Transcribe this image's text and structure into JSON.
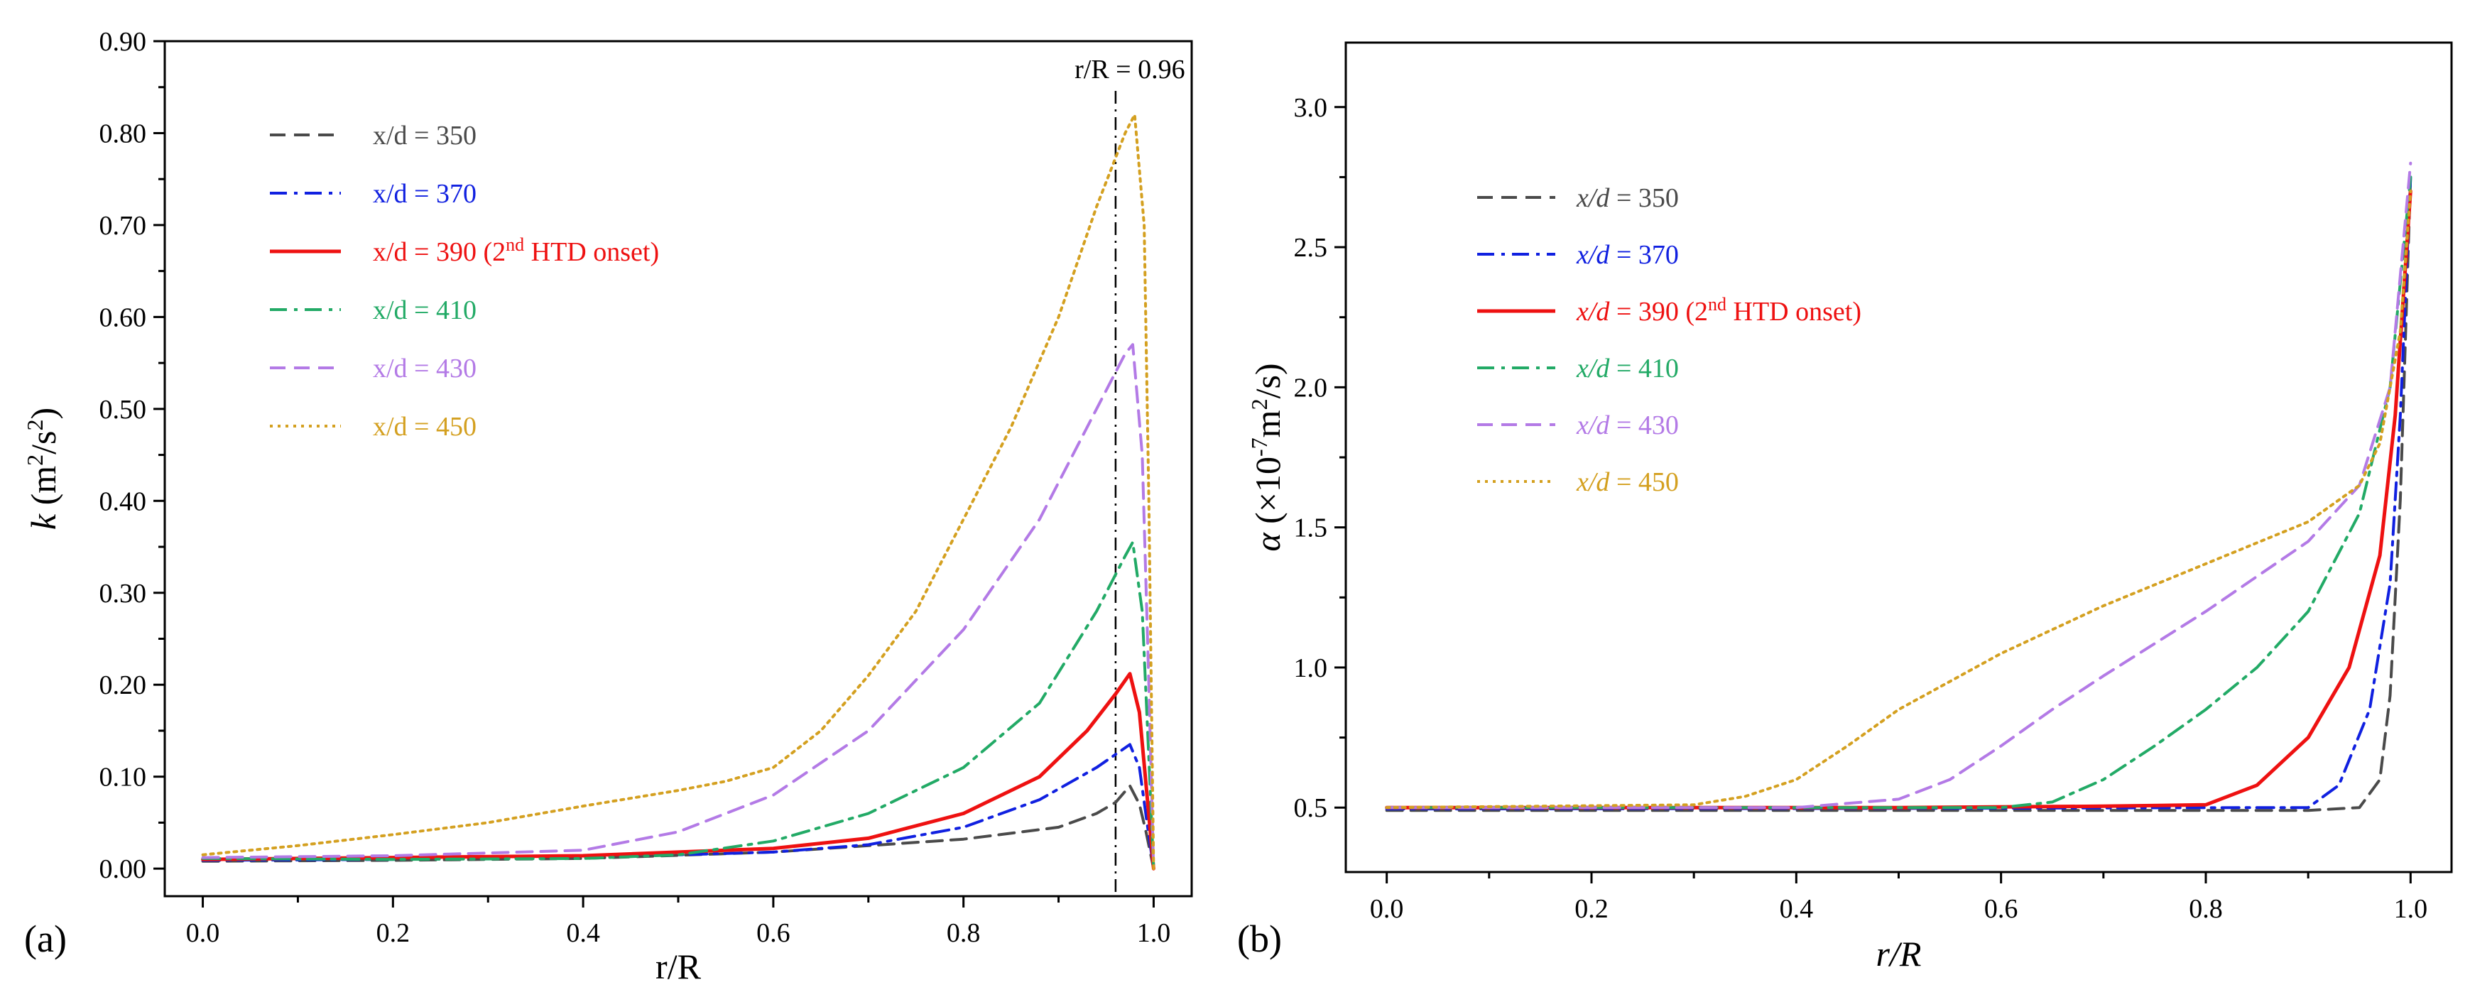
{
  "chart_data": [
    {
      "type": "line",
      "panel_label": "(a)",
      "xlabel": "r/R",
      "ylabel_parts": [
        "k",
        " (m",
        "2",
        "/s",
        "2",
        ")"
      ],
      "xlim": [
        -0.04,
        1.04
      ],
      "ylim": [
        -0.03,
        0.9
      ],
      "x_ticks": [
        "0.0",
        "0.2",
        "0.4",
        "0.6",
        "0.8",
        "1.0"
      ],
      "y_ticks": [
        "0.00",
        "0.10",
        "0.20",
        "0.30",
        "0.40",
        "0.50",
        "0.60",
        "0.70",
        "0.80",
        "0.90"
      ],
      "annotation": {
        "text": "r/R = 0.96",
        "x": 0.96
      },
      "series": [
        {
          "name": "x/d = 350",
          "color": "#4a4a4a",
          "dash": "dash",
          "label": {
            "main": "x/d = 350"
          },
          "points": [
            [
              0,
              0.008
            ],
            [
              0.2,
              0.009
            ],
            [
              0.4,
              0.011
            ],
            [
              0.6,
              0.018
            ],
            [
              0.8,
              0.032
            ],
            [
              0.9,
              0.045
            ],
            [
              0.94,
              0.06
            ],
            [
              0.96,
              0.072
            ],
            [
              0.975,
              0.09
            ],
            [
              0.985,
              0.07
            ],
            [
              0.992,
              0.04
            ],
            [
              1.0,
              0.0
            ]
          ]
        },
        {
          "name": "x/d = 370",
          "color": "#1020e0",
          "dash": "dashdot",
          "label": {
            "main": "x/d = 370"
          },
          "points": [
            [
              0,
              0.009
            ],
            [
              0.2,
              0.01
            ],
            [
              0.4,
              0.012
            ],
            [
              0.6,
              0.018
            ],
            [
              0.7,
              0.026
            ],
            [
              0.8,
              0.045
            ],
            [
              0.88,
              0.075
            ],
            [
              0.94,
              0.11
            ],
            [
              0.975,
              0.135
            ],
            [
              0.985,
              0.11
            ],
            [
              0.993,
              0.05
            ],
            [
              1.0,
              0.0
            ]
          ]
        },
        {
          "name": "x/d = 390 (2nd HTD onset)",
          "color": "#ee1111",
          "dash": "solid",
          "label": {
            "main": "x/d = 390 (2",
            "sup": "nd",
            "tail": " HTD onset)"
          },
          "points": [
            [
              0,
              0.01
            ],
            [
              0.2,
              0.012
            ],
            [
              0.4,
              0.014
            ],
            [
              0.6,
              0.022
            ],
            [
              0.7,
              0.033
            ],
            [
              0.8,
              0.06
            ],
            [
              0.88,
              0.1
            ],
            [
              0.93,
              0.15
            ],
            [
              0.96,
              0.19
            ],
            [
              0.975,
              0.212
            ],
            [
              0.985,
              0.17
            ],
            [
              0.993,
              0.08
            ],
            [
              1.0,
              0.0
            ]
          ]
        },
        {
          "name": "x/d = 410",
          "color": "#22aa66",
          "dash": "dashdot",
          "label": {
            "main": "x/d = 410"
          },
          "points": [
            [
              0,
              0.011
            ],
            [
              0.2,
              0.01
            ],
            [
              0.4,
              0.011
            ],
            [
              0.5,
              0.015
            ],
            [
              0.6,
              0.03
            ],
            [
              0.7,
              0.06
            ],
            [
              0.8,
              0.11
            ],
            [
              0.88,
              0.18
            ],
            [
              0.94,
              0.28
            ],
            [
              0.97,
              0.34
            ],
            [
              0.978,
              0.355
            ],
            [
              0.988,
              0.28
            ],
            [
              0.995,
              0.12
            ],
            [
              1.0,
              0.0
            ]
          ]
        },
        {
          "name": "x/d = 430",
          "color": "#b37ae6",
          "dash": "dash",
          "label": {
            "main": "x/d = 430"
          },
          "points": [
            [
              0,
              0.012
            ],
            [
              0.2,
              0.014
            ],
            [
              0.4,
              0.02
            ],
            [
              0.5,
              0.04
            ],
            [
              0.6,
              0.08
            ],
            [
              0.7,
              0.15
            ],
            [
              0.8,
              0.26
            ],
            [
              0.88,
              0.38
            ],
            [
              0.94,
              0.5
            ],
            [
              0.97,
              0.56
            ],
            [
              0.978,
              0.57
            ],
            [
              0.988,
              0.45
            ],
            [
              0.995,
              0.2
            ],
            [
              1.0,
              0.0
            ]
          ]
        },
        {
          "name": "x/d = 450",
          "color": "#d4a020",
          "dash": "dot",
          "label": {
            "main": "x/d = 450"
          },
          "points": [
            [
              0,
              0.015
            ],
            [
              0.1,
              0.025
            ],
            [
              0.2,
              0.037
            ],
            [
              0.3,
              0.05
            ],
            [
              0.4,
              0.068
            ],
            [
              0.5,
              0.085
            ],
            [
              0.55,
              0.095
            ],
            [
              0.6,
              0.11
            ],
            [
              0.65,
              0.15
            ],
            [
              0.7,
              0.21
            ],
            [
              0.75,
              0.28
            ],
            [
              0.8,
              0.38
            ],
            [
              0.85,
              0.48
            ],
            [
              0.9,
              0.6
            ],
            [
              0.94,
              0.72
            ],
            [
              0.97,
              0.8
            ],
            [
              0.98,
              0.82
            ],
            [
              0.99,
              0.7
            ],
            [
              0.995,
              0.4
            ],
            [
              1.0,
              0.0
            ]
          ]
        }
      ]
    },
    {
      "type": "line",
      "panel_label": "(b)",
      "xlabel": "r/R",
      "ylabel_parts": [
        "α",
        " (×10",
        "-7",
        "m",
        "2",
        "/s)"
      ],
      "xlim": [
        -0.04,
        1.04
      ],
      "ylim": [
        0.27,
        3.23
      ],
      "x_ticks": [
        "0.0",
        "0.2",
        "0.4",
        "0.6",
        "0.8",
        "1.0"
      ],
      "y_ticks": [
        "0.5",
        "1.0",
        "1.5",
        "2.0",
        "2.5",
        "3.0"
      ],
      "series": [
        {
          "name": "x/d = 350",
          "color": "#4a4a4a",
          "dash": "dash",
          "label": {
            "italic": "x/d",
            "rest": " = 350"
          },
          "points": [
            [
              0,
              0.49
            ],
            [
              0.5,
              0.49
            ],
            [
              0.9,
              0.49
            ],
            [
              0.95,
              0.5
            ],
            [
              0.97,
              0.6
            ],
            [
              0.98,
              0.9
            ],
            [
              0.99,
              1.6
            ],
            [
              1.0,
              2.75
            ]
          ]
        },
        {
          "name": "x/d = 370",
          "color": "#1020e0",
          "dash": "dashdot",
          "label": {
            "italic": "x/d",
            "rest": " = 370"
          },
          "points": [
            [
              0,
              0.495
            ],
            [
              0.5,
              0.497
            ],
            [
              0.85,
              0.5
            ],
            [
              0.9,
              0.5
            ],
            [
              0.93,
              0.58
            ],
            [
              0.96,
              0.85
            ],
            [
              0.98,
              1.3
            ],
            [
              0.99,
              1.9
            ],
            [
              1.0,
              2.75
            ]
          ]
        },
        {
          "name": "x/d = 390 (2nd HTD onset)",
          "color": "#ee1111",
          "dash": "solid",
          "label": {
            "italic": "x/d",
            "rest": " = 390 (2",
            "sup": "nd",
            "tail": " HTD onset)"
          },
          "points": [
            [
              0,
              0.5
            ],
            [
              0.5,
              0.5
            ],
            [
              0.7,
              0.505
            ],
            [
              0.8,
              0.51
            ],
            [
              0.85,
              0.58
            ],
            [
              0.9,
              0.75
            ],
            [
              0.94,
              1.0
            ],
            [
              0.97,
              1.4
            ],
            [
              0.985,
              1.9
            ],
            [
              1.0,
              2.7
            ]
          ]
        },
        {
          "name": "x/d = 410",
          "color": "#22aa66",
          "dash": "dashdot",
          "label": {
            "italic": "x/d",
            "rest": " = 410"
          },
          "points": [
            [
              0,
              0.5
            ],
            [
              0.5,
              0.5
            ],
            [
              0.6,
              0.5
            ],
            [
              0.65,
              0.52
            ],
            [
              0.7,
              0.6
            ],
            [
              0.75,
              0.72
            ],
            [
              0.8,
              0.85
            ],
            [
              0.85,
              1.0
            ],
            [
              0.9,
              1.2
            ],
            [
              0.95,
              1.55
            ],
            [
              0.98,
              2.0
            ],
            [
              1.0,
              2.75
            ]
          ]
        },
        {
          "name": "x/d = 430",
          "color": "#b37ae6",
          "dash": "dash",
          "label": {
            "italic": "x/d",
            "rest": " = 430"
          },
          "points": [
            [
              0,
              0.5
            ],
            [
              0.4,
              0.5
            ],
            [
              0.5,
              0.53
            ],
            [
              0.55,
              0.6
            ],
            [
              0.6,
              0.72
            ],
            [
              0.65,
              0.85
            ],
            [
              0.7,
              0.97
            ],
            [
              0.8,
              1.2
            ],
            [
              0.9,
              1.45
            ],
            [
              0.95,
              1.65
            ],
            [
              0.98,
              2.0
            ],
            [
              1.0,
              2.8
            ]
          ]
        },
        {
          "name": "x/d = 450",
          "color": "#d4a020",
          "dash": "dot",
          "label": {
            "italic": "x/d",
            "rest": " = 450"
          },
          "points": [
            [
              0,
              0.5
            ],
            [
              0.3,
              0.51
            ],
            [
              0.35,
              0.54
            ],
            [
              0.4,
              0.6
            ],
            [
              0.45,
              0.72
            ],
            [
              0.5,
              0.85
            ],
            [
              0.6,
              1.05
            ],
            [
              0.7,
              1.22
            ],
            [
              0.8,
              1.37
            ],
            [
              0.9,
              1.52
            ],
            [
              0.95,
              1.65
            ],
            [
              0.97,
              1.8
            ],
            [
              0.99,
              2.2
            ],
            [
              1.0,
              2.7
            ]
          ]
        }
      ]
    }
  ]
}
